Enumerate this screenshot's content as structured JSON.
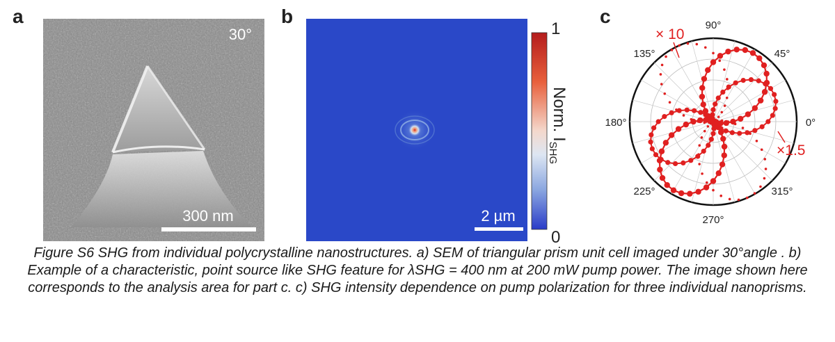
{
  "panels": {
    "a": {
      "letter": "a",
      "angle_label": "30°",
      "scale_bar_label": "300 nm"
    },
    "b": {
      "letter": "b",
      "scale_bar_label": "2 µm",
      "colorbar": {
        "max_label": "1",
        "min_label": "0",
        "title": "Norm. I",
        "title_subscript": "SHG"
      }
    },
    "c": {
      "letter": "c",
      "angle_labels": [
        "0°",
        "45°",
        "90°",
        "135°",
        "180°",
        "225°",
        "270°",
        "315°"
      ],
      "annotations": [
        "× 10",
        "×1.5"
      ]
    }
  },
  "caption": "Figure S6 SHG from individual polycrystalline nanostructures. a) SEM of triangular prism unit cell imaged under 30°angle . b) Example of a characteristic, point source like SHG feature for λSHG = 400 nm at 200 mW pump power. The image shown here corresponds to the analysis area for part c. c) SHG intensity dependence on pump polarization for three individual nanoprisms.",
  "colors": {
    "data_red": "#e02020",
    "shg_background": "#2a48c8",
    "sem_gray": "#8a8a8a"
  }
}
